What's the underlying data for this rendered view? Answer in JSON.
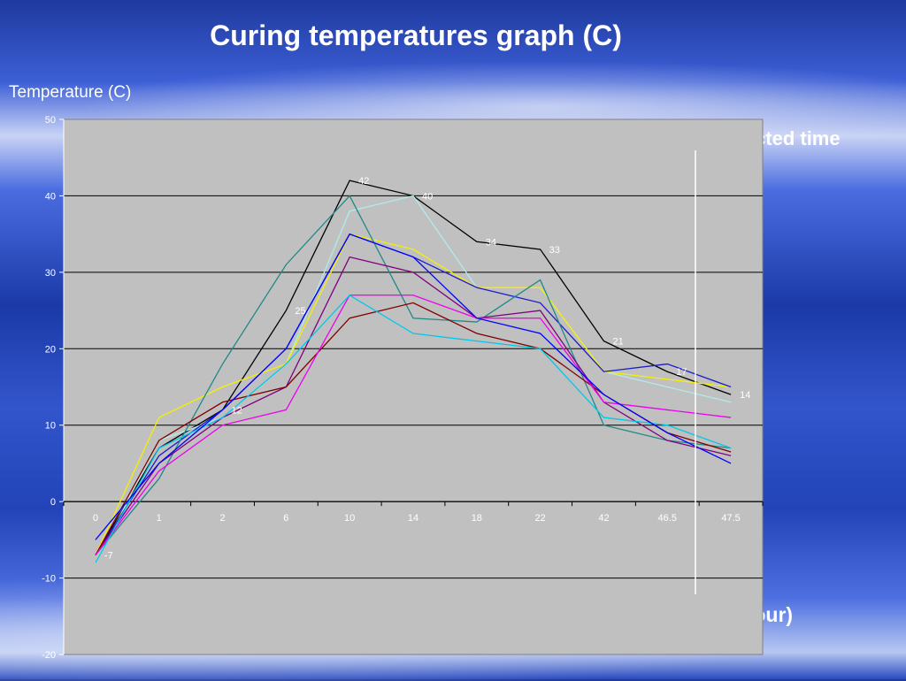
{
  "slide": {
    "title": "Curing temperatures graph (C)",
    "y_axis_label": "Temperature (C)",
    "x_axis_label": "Time (hour)",
    "annotation": "Disconnected time"
  },
  "colors": {
    "plot_background": "#c0c0c0",
    "gridline": "#000000",
    "axis_text": "#ffffff"
  },
  "chart_data": {
    "type": "line",
    "title": "Curing temperatures graph (C)",
    "ylabel": "Temperature (C)",
    "xlabel": "Time (hour)",
    "categories": [
      "0",
      "1",
      "2",
      "6",
      "10",
      "14",
      "18",
      "22",
      "42",
      "46.5",
      "47.5"
    ],
    "ylim": [
      -20,
      50
    ],
    "yticks": [
      -20,
      -10,
      0,
      10,
      20,
      30,
      40,
      50
    ],
    "grid": true,
    "series": [
      {
        "color": "#000000",
        "values": [
          -7,
          7,
          12,
          25,
          42,
          40,
          34,
          33,
          21,
          17,
          14
        ]
      },
      {
        "color": "#b0ecec",
        "values": [
          -8,
          8,
          11,
          18,
          38,
          40,
          28,
          28,
          17,
          15,
          13
        ]
      },
      {
        "color": "#f5f000",
        "values": [
          -7,
          11,
          15,
          18,
          35,
          33,
          28,
          28,
          17,
          16,
          15
        ]
      },
      {
        "color": "#1a1acc",
        "values": [
          -7,
          6,
          12,
          20,
          35,
          32,
          28,
          26,
          17,
          18,
          15
        ]
      },
      {
        "color": "#228888",
        "values": [
          -7,
          3,
          18,
          31,
          40,
          24,
          23.5,
          29,
          10,
          8,
          7
        ]
      },
      {
        "color": "#800080",
        "values": [
          -7,
          5,
          11,
          15,
          32,
          30,
          24,
          25,
          13,
          8,
          6
        ]
      },
      {
        "color": "#800000",
        "values": [
          -7,
          8,
          13,
          15,
          24,
          26,
          22,
          20,
          14,
          9,
          6.5
        ]
      },
      {
        "color": "#ee00ee",
        "values": [
          -7,
          4,
          10,
          12,
          27,
          27,
          24,
          24,
          13,
          12,
          11
        ]
      },
      {
        "color": "#00c8e8",
        "values": [
          -8,
          7,
          11,
          18,
          27,
          22,
          21,
          20,
          11,
          10,
          7
        ]
      },
      {
        "color": "#0000ff",
        "values": [
          -5,
          5,
          12,
          20,
          35,
          32,
          24,
          22,
          14,
          9,
          5
        ]
      }
    ],
    "data_labels": [
      {
        "category": "0",
        "value": -7,
        "text": "-7"
      },
      {
        "category": "2",
        "value": 12,
        "text": "12"
      },
      {
        "category": "6",
        "value": 25,
        "text": "25"
      },
      {
        "category": "10",
        "value": 42,
        "text": "42"
      },
      {
        "category": "14",
        "value": 40,
        "text": "40"
      },
      {
        "category": "18",
        "value": 34,
        "text": "34"
      },
      {
        "category": "22",
        "value": 33,
        "text": "33"
      },
      {
        "category": "42",
        "value": 21,
        "text": "21"
      },
      {
        "category": "46.5",
        "value": 17,
        "text": "17"
      },
      {
        "category": "47.5",
        "value": 14,
        "text": "14"
      }
    ]
  }
}
